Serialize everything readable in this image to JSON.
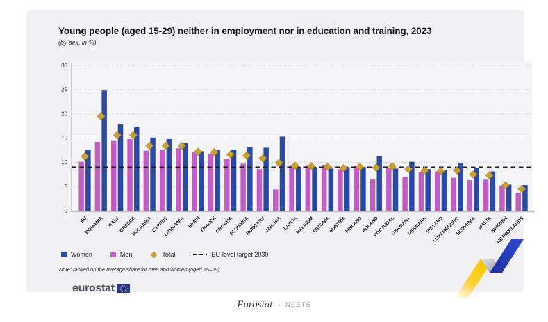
{
  "card": {
    "title": "Young people (aged 15-29) neither in employment nor in education and training, 2023",
    "subtitle": "(by sex, in %)",
    "note": "Note: ranked on the average share for men and women (aged 15–29).",
    "logo_text": "eurostat"
  },
  "footer": {
    "source": "Eurostat",
    "separator": "-",
    "dataset": "NEETS"
  },
  "colors": {
    "women_blue": "#2b4ba3",
    "men_magenta": "#c25dc4",
    "total_gold": "#c79f33",
    "target_line": "#1c1c1c",
    "card_bg": "#f1f1f3",
    "grid": "#c9c9cd",
    "axis": "#b5b5b9",
    "eu_flag_blue": "#28348a",
    "ribbon_yellow": "#fcc500",
    "ribbon_blue": "#2744c4",
    "ribbon_gray": "#9aa0a8"
  },
  "chart_data": {
    "type": "bar",
    "title": "Young people (aged 15-29) neither in employment nor in education and training, 2023",
    "subtitle": "(by sex, in %)",
    "xlabel": "",
    "ylabel": "",
    "ylim": [
      0,
      30
    ],
    "yticks": [
      0,
      5,
      10,
      15,
      20,
      25,
      30
    ],
    "grid": true,
    "legend_position": "bottom",
    "categories": [
      "EU",
      "ROMANIA",
      "ITALY",
      "GREECE",
      "BULGARIA",
      "CYPRUS",
      "LITHUANIA",
      "SPAIN",
      "FRANCE",
      "CROATIA",
      "SLOVAKIA",
      "HUNGARY",
      "CZECHIA",
      "LATVIA",
      "BELGIUM",
      "ESTONIA",
      "AUSTRIA",
      "FINLAND",
      "POLAND",
      "PORTUGAL",
      "GERMANY",
      "DENMARK",
      "IRELAND",
      "LUXEMBOURG",
      "SLOVENIA",
      "MALTA",
      "SWEDEN",
      "NETHERLANDS"
    ],
    "series": [
      {
        "name": "Women",
        "marker": "bar",
        "color": "#2b4ba3",
        "values": [
          12.5,
          24.8,
          17.8,
          17.3,
          15.1,
          14.8,
          14.0,
          12.3,
          12.5,
          12.5,
          13.1,
          13.0,
          15.3,
          9.1,
          9.0,
          8.7,
          9.0,
          9.0,
          11.3,
          8.7,
          10.1,
          8.6,
          8.4,
          9.9,
          8.8,
          8.1,
          5.4,
          5.3
        ]
      },
      {
        "name": "Men",
        "marker": "bar",
        "color": "#c25dc4",
        "values": [
          10.1,
          14.2,
          14.4,
          14.8,
          12.4,
          12.6,
          12.9,
          12.1,
          11.8,
          10.7,
          9.7,
          8.6,
          4.4,
          9.4,
          9.4,
          9.5,
          8.6,
          9.3,
          6.6,
          8.8,
          7.0,
          8.0,
          8.1,
          6.8,
          6.3,
          6.4,
          5.2,
          3.7
        ]
      },
      {
        "name": "Total",
        "marker": "diamond",
        "color": "#c79f33",
        "values": [
          11.2,
          19.5,
          15.6,
          15.6,
          13.4,
          13.4,
          13.4,
          12.2,
          12.1,
          11.6,
          11.4,
          10.8,
          9.9,
          9.3,
          9.2,
          9.1,
          8.8,
          9.1,
          8.9,
          9.2,
          8.6,
          8.3,
          8.2,
          8.3,
          7.5,
          7.3,
          5.3,
          4.5
        ]
      }
    ],
    "target_line": {
      "label": "EU-level target 2030",
      "value": 9
    }
  }
}
